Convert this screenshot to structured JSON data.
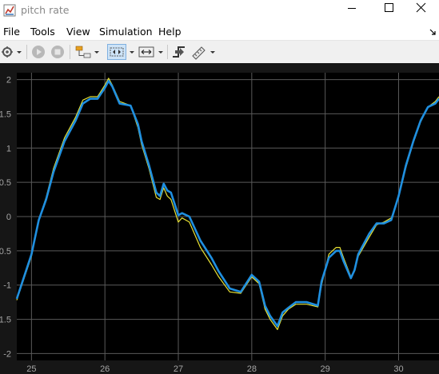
{
  "window": {
    "title": "pitch rate",
    "app_icon": "matlab-figure-icon",
    "controls": [
      "minimize-icon",
      "maximize-icon",
      "close-icon"
    ]
  },
  "menu": {
    "items": [
      "File",
      "Tools",
      "View",
      "Simulation",
      "Help"
    ],
    "dock_icon": "dock-arrow-icon"
  },
  "toolbar": {
    "buttons": [
      {
        "name": "settings-icon",
        "dropdown": true
      },
      {
        "name": "run-icon",
        "enabled": false
      },
      {
        "name": "stop-icon",
        "enabled": false
      },
      {
        "name": "signal-hierarchy-icon",
        "dropdown": true
      },
      {
        "name": "zoom-icon",
        "dropdown": true,
        "pressed": true
      },
      {
        "name": "scale-axes-icon",
        "dropdown": true
      },
      {
        "name": "triggers-icon"
      },
      {
        "name": "measurements-icon",
        "dropdown": true
      }
    ]
  },
  "colors": {
    "axes_background": "#000000",
    "figure_background": "#161616",
    "grid": "#5a5a5a",
    "tick_label": "#a6a6a6",
    "series_primary": "#1f8fe0",
    "series_secondary": "#e8e234"
  },
  "chart_data": {
    "type": "line",
    "title": "",
    "xlabel": "",
    "ylabel": "",
    "xlim": [
      24.8,
      30.55
    ],
    "ylim": [
      -2.1,
      2.1
    ],
    "grid": true,
    "x_ticks": [
      "25",
      "26",
      "27",
      "28",
      "29",
      "30"
    ],
    "y_ticks": [
      "2",
      "1.5",
      "1",
      "0.5",
      "0",
      "-0.5",
      "-1",
      "-1.5",
      "-2"
    ],
    "series": [
      {
        "color": "#1f8fe0",
        "x": [
          24.8,
          25.0,
          25.1,
          25.2,
          25.3,
          25.45,
          25.6,
          25.7,
          25.8,
          25.9,
          26.0,
          26.05,
          26.1,
          26.2,
          26.35,
          26.45,
          26.5,
          26.6,
          26.7,
          26.75,
          26.8,
          26.85,
          26.9,
          27.0,
          27.05,
          27.15,
          27.3,
          27.45,
          27.55,
          27.7,
          27.85,
          28.0,
          28.1,
          28.18,
          28.25,
          28.35,
          28.42,
          28.5,
          28.6,
          28.75,
          28.9,
          28.95,
          29.05,
          29.15,
          29.2,
          29.25,
          29.35,
          29.4,
          29.45,
          29.6,
          29.7,
          29.8,
          29.9,
          30.0,
          30.1,
          30.2,
          30.3,
          30.4,
          30.5,
          30.55
        ],
        "y": [
          -1.2,
          -0.55,
          -0.05,
          0.25,
          0.65,
          1.1,
          1.4,
          1.65,
          1.72,
          1.72,
          1.88,
          1.98,
          1.9,
          1.65,
          1.62,
          1.35,
          1.1,
          0.75,
          0.35,
          0.3,
          0.48,
          0.38,
          0.35,
          0.02,
          0.05,
          0.0,
          -0.35,
          -0.6,
          -0.8,
          -1.05,
          -1.1,
          -0.85,
          -0.95,
          -1.3,
          -1.45,
          -1.6,
          -1.4,
          -1.33,
          -1.25,
          -1.25,
          -1.3,
          -0.95,
          -0.6,
          -0.5,
          -0.5,
          -0.65,
          -0.9,
          -0.78,
          -0.55,
          -0.25,
          -0.1,
          -0.1,
          -0.05,
          0.3,
          0.75,
          1.1,
          1.4,
          1.6,
          1.65,
          1.72
        ]
      },
      {
        "color": "#e8e234",
        "x": [
          24.8,
          25.0,
          25.1,
          25.2,
          25.3,
          25.45,
          25.6,
          25.7,
          25.8,
          25.9,
          26.0,
          26.05,
          26.1,
          26.2,
          26.35,
          26.45,
          26.5,
          26.6,
          26.7,
          26.75,
          26.8,
          26.85,
          26.9,
          27.0,
          27.05,
          27.15,
          27.3,
          27.45,
          27.55,
          27.7,
          27.85,
          28.0,
          28.1,
          28.18,
          28.25,
          28.35,
          28.42,
          28.5,
          28.6,
          28.75,
          28.9,
          28.95,
          29.05,
          29.15,
          29.2,
          29.25,
          29.35,
          29.4,
          29.45,
          29.6,
          29.7,
          29.8,
          29.9,
          30.0,
          30.1,
          30.2,
          30.3,
          30.4,
          30.5,
          30.55
        ],
        "y": [
          -1.22,
          -0.58,
          -0.05,
          0.28,
          0.7,
          1.15,
          1.45,
          1.7,
          1.75,
          1.75,
          1.92,
          2.02,
          1.92,
          1.68,
          1.62,
          1.3,
          1.05,
          0.7,
          0.28,
          0.25,
          0.42,
          0.3,
          0.25,
          -0.08,
          -0.02,
          -0.08,
          -0.45,
          -0.7,
          -0.88,
          -1.1,
          -1.12,
          -0.88,
          -0.98,
          -1.35,
          -1.5,
          -1.65,
          -1.45,
          -1.35,
          -1.28,
          -1.28,
          -1.32,
          -1.0,
          -0.55,
          -0.45,
          -0.45,
          -0.6,
          -0.88,
          -0.8,
          -0.58,
          -0.3,
          -0.12,
          -0.08,
          -0.02,
          0.28,
          0.72,
          1.08,
          1.38,
          1.6,
          1.68,
          1.75
        ]
      }
    ]
  }
}
